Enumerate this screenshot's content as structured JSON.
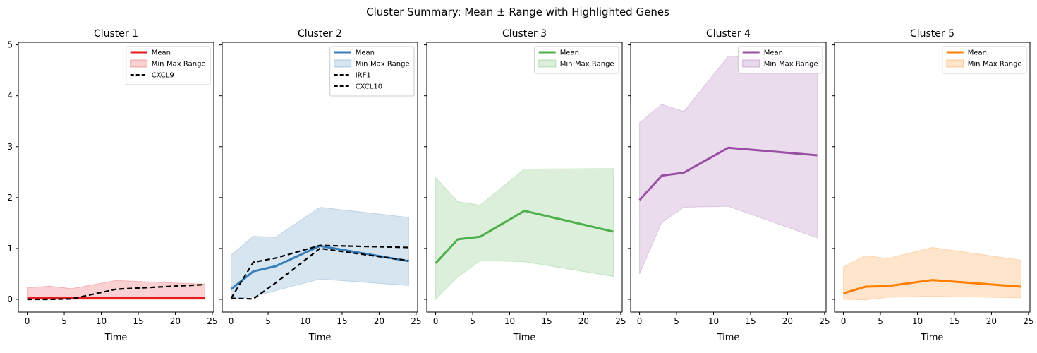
{
  "figure": {
    "suptitle": "Cluster Summary: Mean ± Range with Highlighted Genes"
  },
  "chart_data": [
    {
      "type": "line",
      "title": "Cluster 1",
      "xlabel": "Time",
      "ylabel": "",
      "xlim": [
        -1.2,
        25.2
      ],
      "ylim": [
        -0.25,
        5.05
      ],
      "xticks": [
        0,
        5,
        10,
        15,
        20,
        25
      ],
      "yticks": [
        0,
        1,
        2,
        3,
        4,
        5
      ],
      "grid": false,
      "legend_position": "top-right",
      "color": "#e41a1c",
      "x": [
        0,
        3,
        6,
        12,
        24
      ],
      "mean": [
        0.02,
        0.02,
        0.02,
        0.03,
        0.02
      ],
      "range_min": [
        0.0,
        0.0,
        0.0,
        0.0,
        0.0
      ],
      "range_max": [
        0.23,
        0.26,
        0.21,
        0.37,
        0.3
      ],
      "highlighted": [
        {
          "name": "CXCL9",
          "values": [
            0.0,
            0.0,
            0.01,
            0.2,
            0.29
          ]
        }
      ],
      "legend": {
        "mean": "Mean",
        "range": "Min-Max Range"
      }
    },
    {
      "type": "line",
      "title": "Cluster 2",
      "xlabel": "Time",
      "ylabel": "",
      "xlim": [
        -1.2,
        25.2
      ],
      "ylim": [
        -0.25,
        5.05
      ],
      "xticks": [
        0,
        5,
        10,
        15,
        20,
        25
      ],
      "yticks": [
        0,
        1,
        2,
        3,
        4,
        5
      ],
      "grid": false,
      "legend_position": "top-right",
      "color": "#377eb8",
      "x": [
        0,
        3,
        6,
        12,
        24
      ],
      "mean": [
        0.2,
        0.55,
        0.65,
        1.05,
        0.75
      ],
      "range_min": [
        0.0,
        0.05,
        0.17,
        0.4,
        0.27
      ],
      "range_max": [
        0.87,
        1.24,
        1.22,
        1.81,
        1.61
      ],
      "highlighted": [
        {
          "name": "IRF1",
          "values": [
            0.02,
            0.73,
            0.81,
            1.06,
            1.02
          ]
        },
        {
          "name": "CXCL10",
          "values": [
            0.02,
            0.01,
            0.32,
            1.0,
            0.76
          ]
        }
      ],
      "legend": {
        "mean": "Mean",
        "range": "Min-Max Range"
      }
    },
    {
      "type": "line",
      "title": "Cluster 3",
      "xlabel": "Time",
      "ylabel": "",
      "xlim": [
        -1.2,
        25.2
      ],
      "ylim": [
        -0.25,
        5.05
      ],
      "xticks": [
        0,
        5,
        10,
        15,
        20,
        25
      ],
      "yticks": [
        0,
        1,
        2,
        3,
        4,
        5
      ],
      "grid": false,
      "legend_position": "top-right",
      "color": "#4daf4a",
      "x": [
        0,
        3,
        6,
        12,
        24
      ],
      "mean": [
        0.71,
        1.18,
        1.23,
        1.74,
        1.33
      ],
      "range_min": [
        0.0,
        0.44,
        0.76,
        0.74,
        0.45
      ],
      "range_max": [
        2.39,
        1.92,
        1.85,
        2.56,
        2.57
      ],
      "highlighted": [],
      "legend": {
        "mean": "Mean",
        "range": "Min-Max Range"
      }
    },
    {
      "type": "line",
      "title": "Cluster 4",
      "xlabel": "Time",
      "ylabel": "",
      "xlim": [
        -1.2,
        25.2
      ],
      "ylim": [
        -0.25,
        5.05
      ],
      "xticks": [
        0,
        5,
        10,
        15,
        20,
        25
      ],
      "yticks": [
        0,
        1,
        2,
        3,
        4,
        5
      ],
      "grid": false,
      "legend_position": "top-right",
      "color": "#984ea3",
      "x": [
        0,
        3,
        6,
        12,
        24
      ],
      "mean": [
        1.95,
        2.43,
        2.49,
        2.98,
        2.83
      ],
      "range_min": [
        0.5,
        1.51,
        1.81,
        1.83,
        1.21
      ],
      "range_max": [
        3.47,
        3.83,
        3.69,
        4.78,
        4.72
      ],
      "highlighted": [],
      "legend": {
        "mean": "Mean",
        "range": "Min-Max Range"
      }
    },
    {
      "type": "line",
      "title": "Cluster 5",
      "xlabel": "Time",
      "ylabel": "",
      "xlim": [
        -1.2,
        25.2
      ],
      "ylim": [
        -0.25,
        5.05
      ],
      "xticks": [
        0,
        5,
        10,
        15,
        20,
        25
      ],
      "yticks": [
        0,
        1,
        2,
        3,
        4,
        5
      ],
      "grid": false,
      "legend_position": "top-right",
      "color": "#ff7f00",
      "x": [
        0,
        3,
        6,
        12,
        24
      ],
      "mean": [
        0.12,
        0.25,
        0.26,
        0.38,
        0.25
      ],
      "range_min": [
        0.0,
        -0.01,
        0.04,
        0.06,
        0.03
      ],
      "range_max": [
        0.64,
        0.86,
        0.8,
        1.02,
        0.77
      ],
      "highlighted": [],
      "legend": {
        "mean": "Mean",
        "range": "Min-Max Range"
      }
    }
  ]
}
